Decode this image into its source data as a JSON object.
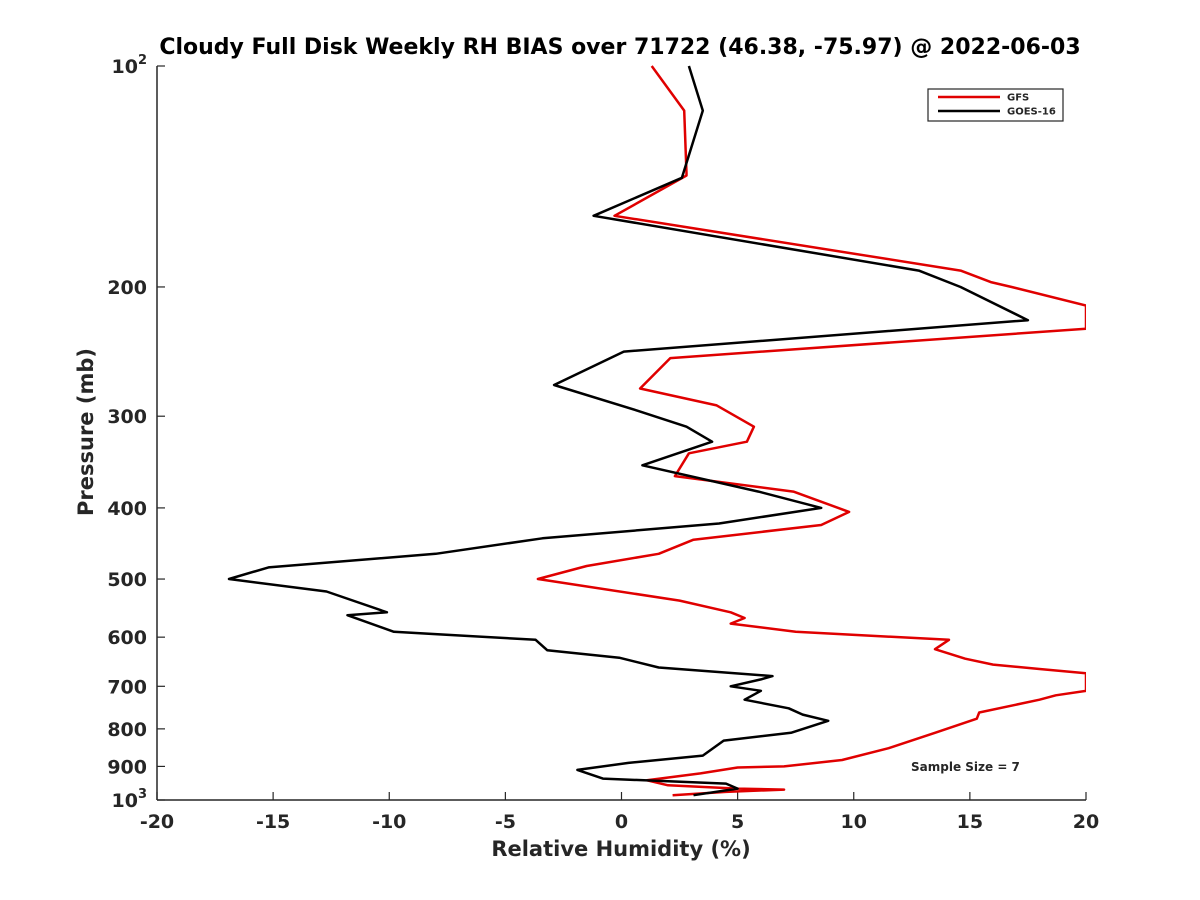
{
  "chart_data": {
    "type": "line",
    "title": "Cloudy Full Disk Weekly RH BIAS over 71722 (46.38, -75.97) @ 2022-06-03",
    "xlabel": "Relative Humidity (%)",
    "ylabel": "Pressure (mb)",
    "xlim": [
      -20,
      20
    ],
    "ylim": [
      100,
      1000
    ],
    "yscale": "log",
    "x_ticks": [
      "-20",
      "-15",
      "-10",
      "-5",
      "0",
      "5",
      "10",
      "15",
      "20"
    ],
    "y_ticks": [
      {
        "value": 100,
        "base": "10",
        "exp": "2"
      },
      {
        "value": 200,
        "label": "200"
      },
      {
        "value": 300,
        "label": "300"
      },
      {
        "value": 400,
        "label": "400"
      },
      {
        "value": 500,
        "label": "500"
      },
      {
        "value": 600,
        "label": "600"
      },
      {
        "value": 700,
        "label": "700"
      },
      {
        "value": 800,
        "label": "800"
      },
      {
        "value": 900,
        "label": "900"
      },
      {
        "value": 1000,
        "base": "10",
        "exp": "3"
      }
    ],
    "grid": false,
    "legend_position": "top-right",
    "annotation": "Sample Size = 7",
    "series": [
      {
        "name": "GFS",
        "color": "#e00000",
        "points": [
          [
            1.3,
            100
          ],
          [
            2.7,
            115
          ],
          [
            2.8,
            140
          ],
          [
            2.8,
            141
          ],
          [
            -0.3,
            160
          ],
          [
            14.6,
            190
          ],
          [
            15.9,
            197
          ],
          [
            16.8,
            200
          ],
          [
            20.0,
            212
          ],
          [
            20.0,
            228
          ],
          [
            2.1,
            250
          ],
          [
            0.8,
            275
          ],
          [
            4.1,
            290
          ],
          [
            5.7,
            310
          ],
          [
            5.4,
            325
          ],
          [
            2.9,
            337
          ],
          [
            2.3,
            362
          ],
          [
            7.4,
            380
          ],
          [
            9.8,
            405
          ],
          [
            8.6,
            422
          ],
          [
            3.1,
            442
          ],
          [
            1.6,
            462
          ],
          [
            -1.5,
            480
          ],
          [
            -3.6,
            500
          ],
          [
            2.5,
            535
          ],
          [
            4.7,
            555
          ],
          [
            5.3,
            565
          ],
          [
            4.7,
            575
          ],
          [
            7.5,
            590
          ],
          [
            14.1,
            605
          ],
          [
            13.5,
            623
          ],
          [
            14.8,
            642
          ],
          [
            16.0,
            654
          ],
          [
            18.0,
            663
          ],
          [
            20.0,
            672
          ],
          [
            20.0,
            710
          ],
          [
            18.7,
            720
          ],
          [
            18.0,
            730
          ],
          [
            15.4,
            760
          ],
          [
            15.3,
            775
          ],
          [
            13.5,
            810
          ],
          [
            11.5,
            850
          ],
          [
            9.5,
            882
          ],
          [
            7.0,
            900
          ],
          [
            5.0,
            903
          ],
          [
            3.4,
            920
          ],
          [
            1.1,
            940
          ],
          [
            2.0,
            955
          ],
          [
            5.0,
            965
          ],
          [
            7.0,
            968
          ],
          [
            4.5,
            975
          ],
          [
            2.2,
            985
          ]
        ]
      },
      {
        "name": "GOES-16",
        "color": "#000000",
        "points": [
          [
            2.9,
            100
          ],
          [
            3.5,
            115
          ],
          [
            2.6,
            142
          ],
          [
            -1.2,
            160
          ],
          [
            12.8,
            190
          ],
          [
            14.6,
            200
          ],
          [
            17.5,
            222
          ],
          [
            0.1,
            245
          ],
          [
            -2.9,
            272
          ],
          [
            0.7,
            295
          ],
          [
            2.8,
            310
          ],
          [
            3.9,
            325
          ],
          [
            0.9,
            350
          ],
          [
            5.9,
            380
          ],
          [
            8.6,
            400
          ],
          [
            4.2,
            420
          ],
          [
            -3.4,
            440
          ],
          [
            -8.0,
            462
          ],
          [
            -15.2,
            482
          ],
          [
            -16.9,
            500
          ],
          [
            -12.7,
            520
          ],
          [
            -10.1,
            555
          ],
          [
            -11.8,
            560
          ],
          [
            -9.8,
            590
          ],
          [
            -3.7,
            605
          ],
          [
            -3.2,
            625
          ],
          [
            -0.1,
            640
          ],
          [
            1.6,
            660
          ],
          [
            6.5,
            678
          ],
          [
            6.0,
            685
          ],
          [
            4.7,
            700
          ],
          [
            6.0,
            710
          ],
          [
            5.3,
            730
          ],
          [
            7.2,
            750
          ],
          [
            7.8,
            765
          ],
          [
            8.9,
            780
          ],
          [
            7.3,
            810
          ],
          [
            4.4,
            830
          ],
          [
            3.5,
            870
          ],
          [
            0.3,
            890
          ],
          [
            -1.9,
            910
          ],
          [
            -0.8,
            935
          ],
          [
            4.5,
            950
          ],
          [
            5.0,
            965
          ],
          [
            3.1,
            985
          ]
        ]
      }
    ]
  }
}
